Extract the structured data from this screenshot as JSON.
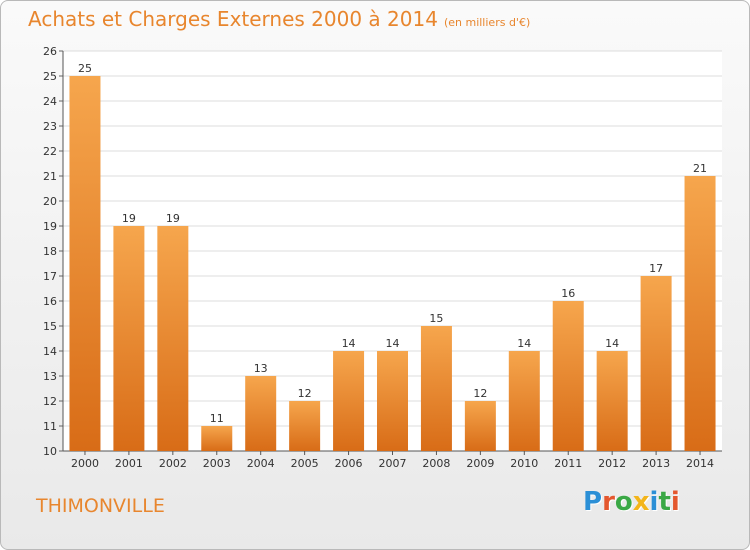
{
  "header": {
    "title": "Achats et Charges Externes 2000 à 2014",
    "subtitle": "(en milliers d'€)"
  },
  "commune": "THIMONVILLE",
  "logo": {
    "text": "Proxiti",
    "colors": [
      "#2b8fd6",
      "#e4572e",
      "#3aa845",
      "#f3b51a",
      "#2b8fd6",
      "#3aa845",
      "#e4572e"
    ]
  },
  "colors": {
    "bar_top": "#f6a64d",
    "bar_bottom": "#d86c17",
    "accent": "#e8862e"
  },
  "chart_data": {
    "type": "bar",
    "title": "Achats et Charges Externes 2000 à 2014",
    "subtitle": "(en milliers d'€)",
    "categories": [
      "2000",
      "2001",
      "2002",
      "2003",
      "2004",
      "2005",
      "2006",
      "2007",
      "2008",
      "2009",
      "2010",
      "2011",
      "2012",
      "2013",
      "2014"
    ],
    "values": [
      25,
      19,
      19,
      11,
      13,
      12,
      14,
      14,
      15,
      12,
      14,
      16,
      14,
      17,
      21
    ],
    "ylim": [
      10,
      26
    ],
    "yticks": [
      10,
      11,
      12,
      13,
      14,
      15,
      16,
      17,
      18,
      19,
      20,
      21,
      22,
      23,
      24,
      25,
      26
    ],
    "grid": true,
    "legend": "none"
  }
}
